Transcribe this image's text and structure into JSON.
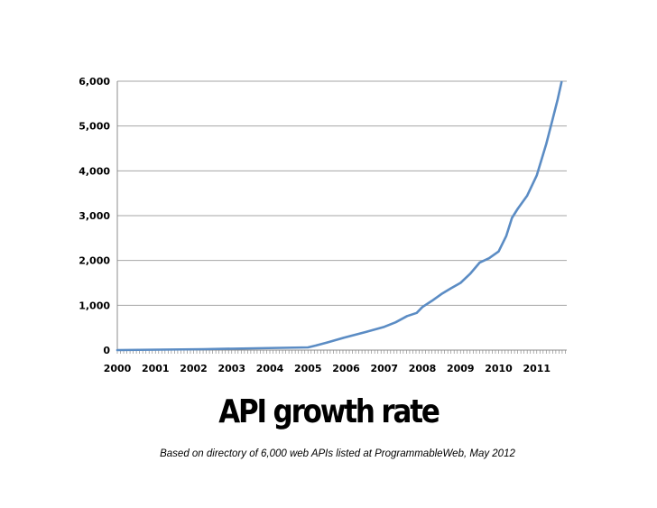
{
  "chart_data": {
    "type": "line",
    "title": "API growth rate",
    "subtitle": "Based on directory of 6,000 web APIs listed at ProgrammableWeb, May 2012",
    "xlabel": "",
    "ylabel": "",
    "xlim": [
      2000,
      2011.95
    ],
    "ylim": [
      0,
      6000
    ],
    "grid": true,
    "legend": "none",
    "line_color": "#5b8cc4",
    "x_ticks": [
      "2000",
      "2001",
      "2002",
      "2003",
      "2004",
      "2005",
      "2006",
      "2007",
      "2008",
      "2009",
      "2010",
      "2011"
    ],
    "y_ticks": [
      "0",
      "1,000",
      "2,000",
      "3,000",
      "4,000",
      "5,000",
      "6,000"
    ],
    "series": [
      {
        "x": [
          2000,
          2002.25,
          2004.3,
          2005.0,
          2005.2,
          2005.5,
          2006.0,
          2006.5,
          2007.0,
          2007.3,
          2007.6,
          2007.85,
          2008.0,
          2008.25,
          2008.5,
          2008.75,
          2009.0,
          2009.25,
          2009.5,
          2009.75,
          2010.0,
          2010.2,
          2010.35,
          2010.5,
          2010.75,
          2011.0,
          2011.25,
          2011.4,
          2011.55,
          2011.65
        ],
        "y": [
          0,
          20,
          50,
          60,
          100,
          170,
          290,
          400,
          520,
          620,
          760,
          830,
          960,
          1100,
          1250,
          1380,
          1500,
          1700,
          1950,
          2050,
          2200,
          2550,
          2950,
          3150,
          3450,
          3900,
          4600,
          5100,
          5600,
          5980
        ]
      }
    ]
  }
}
